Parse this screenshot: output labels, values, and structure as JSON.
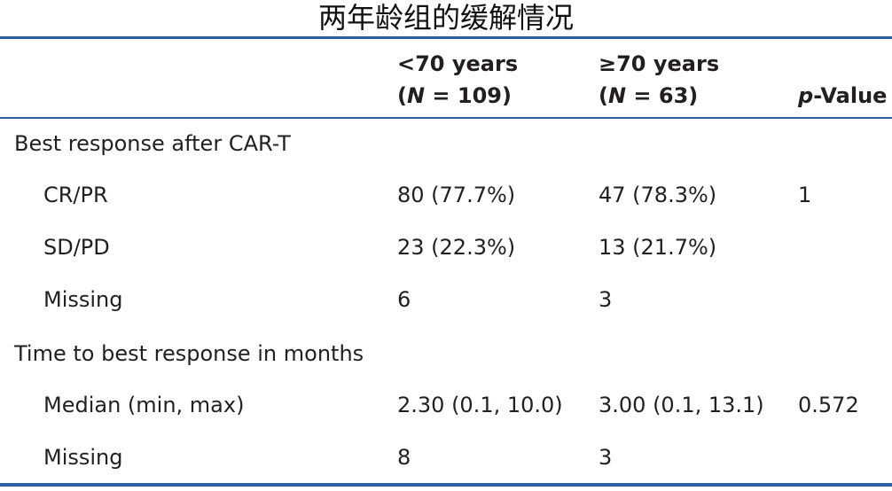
{
  "title": "两年龄组的缓解情况",
  "header": {
    "col1": {
      "line1": "<70 years",
      "n_label": "N",
      "n_value": " = 109)",
      "open": "("
    },
    "col2": {
      "line1": "≥70 years",
      "n_label": "N",
      "n_value": " = 63)",
      "open": "("
    },
    "col3": {
      "p_label": "p",
      "rest": "-Value"
    }
  },
  "rows": [
    {
      "label": "Best response after CAR-T",
      "indent": false,
      "col1": "",
      "col2": "",
      "col3": ""
    },
    {
      "label": "CR/PR",
      "indent": true,
      "col1": "80 (77.7%)",
      "col2": "47 (78.3%)",
      "col3": "1"
    },
    {
      "label": "SD/PD",
      "indent": true,
      "col1": "23 (22.3%)",
      "col2": "13 (21.7%)",
      "col3": ""
    },
    {
      "label": "Missing",
      "indent": true,
      "col1": "6",
      "col2": "3",
      "col3": ""
    },
    {
      "label": "Time to best response in months",
      "indent": false,
      "col1": "",
      "col2": "",
      "col3": ""
    },
    {
      "label": "Median (min, max)",
      "indent": true,
      "col1": "2.30 (0.1, 10.0)",
      "col2": "3.00 (0.1, 13.1)",
      "col3": "0.572"
    },
    {
      "label": "Missing",
      "indent": true,
      "col1": "8",
      "col2": "3",
      "col3": ""
    }
  ],
  "colors": {
    "rule": "#2b5fa0",
    "text": "#231f20"
  }
}
